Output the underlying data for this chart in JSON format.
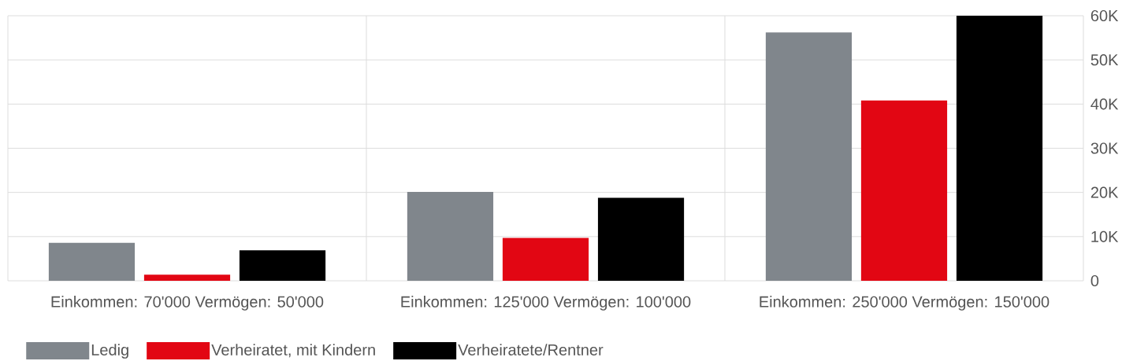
{
  "chart_data": {
    "type": "bar",
    "categories": [
      "Einkommen: 70'000 Vermögen: 50'000",
      "Einkommen: 125'000 Vermögen: 100'000",
      "Einkommen: 250'000 Vermögen: 150'000"
    ],
    "series": [
      {
        "name": "Ledig",
        "color": "#80868c",
        "values": [
          8600,
          20100,
          56200
        ]
      },
      {
        "name": "Verheiratet, mit Kindern",
        "color": "#e20613",
        "values": [
          1400,
          9700,
          40800
        ]
      },
      {
        "name": "Verheiratete/Rentner",
        "color": "#000000",
        "values": [
          6900,
          18800,
          60000
        ]
      }
    ],
    "ylim": [
      0,
      60000
    ],
    "yticks": [
      0,
      {
        "value": 10000,
        "label": "10K"
      },
      {
        "value": 20000,
        "label": "20K"
      },
      {
        "value": 30000,
        "label": "30K"
      },
      {
        "value": 40000,
        "label": "40K"
      },
      {
        "value": 50000,
        "label": "50K"
      },
      {
        "value": 60000,
        "label": "60K"
      }
    ],
    "grid": true,
    "legend": "bottom"
  }
}
